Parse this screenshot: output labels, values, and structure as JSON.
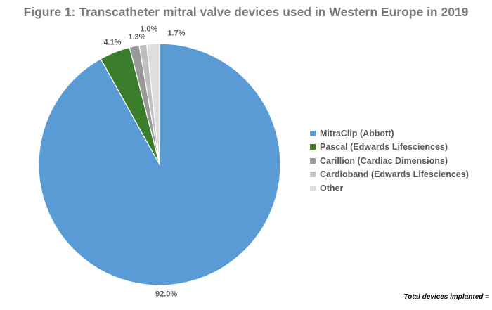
{
  "chart_data": {
    "type": "pie",
    "title": "Figure 1: Transcatheter mitral valve devices used in Western Europe in 2019",
    "slices": [
      {
        "name": "MitraClip (Abbott)",
        "value": 92.0,
        "label": "92.0%",
        "color": "#5b9bd5"
      },
      {
        "name": "Pascal (Edwards Lifesciences)",
        "value": 4.1,
        "label": "4.1%",
        "color": "#3a7d2a"
      },
      {
        "name": "Carillion (Cardiac Dimensions)",
        "value": 1.3,
        "label": "1.3%",
        "color": "#999999"
      },
      {
        "name": "Cardioband (Edwards Lifesciences)",
        "value": 1.0,
        "label": "1.0%",
        "color": "#c0c0c0"
      },
      {
        "name": "Other",
        "value": 1.7,
        "label": "1.7%",
        "color": "#dedede"
      }
    ],
    "legend_position": "right",
    "footnote": "Total devices implanted ="
  }
}
